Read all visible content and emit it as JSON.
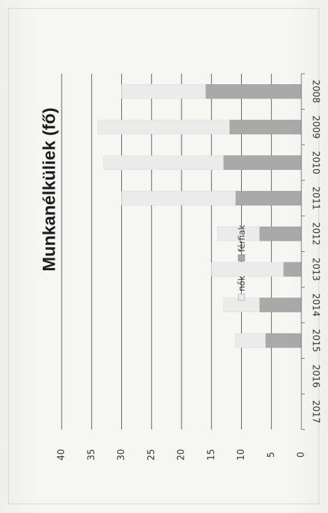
{
  "chart_data": {
    "type": "bar",
    "stacked": true,
    "orientation": "rotated-90",
    "title": "Munkanélküliek (fő)",
    "categories": [
      "2008",
      "2009",
      "2010",
      "2011",
      "2012",
      "2013",
      "2014",
      "2015",
      "2016",
      "2017"
    ],
    "series": [
      {
        "name": "férfiak",
        "values": [
          16,
          12,
          13,
          11,
          7,
          3,
          7,
          6,
          0,
          0
        ]
      },
      {
        "name": "nők",
        "values": [
          14,
          22,
          20,
          19,
          7,
          12,
          6,
          5,
          0,
          0
        ]
      }
    ],
    "ylim": [
      0,
      40
    ],
    "yticks": [
      "0",
      "5",
      "10",
      "15",
      "20",
      "25",
      "30",
      "35",
      "40"
    ],
    "grid": true,
    "legend_position": "top-right",
    "colors": {
      "férfiak": "#a9a9a9",
      "nők": "#ebebeb",
      "grid": "#4a4a52",
      "background": "#f6f6f3"
    }
  }
}
